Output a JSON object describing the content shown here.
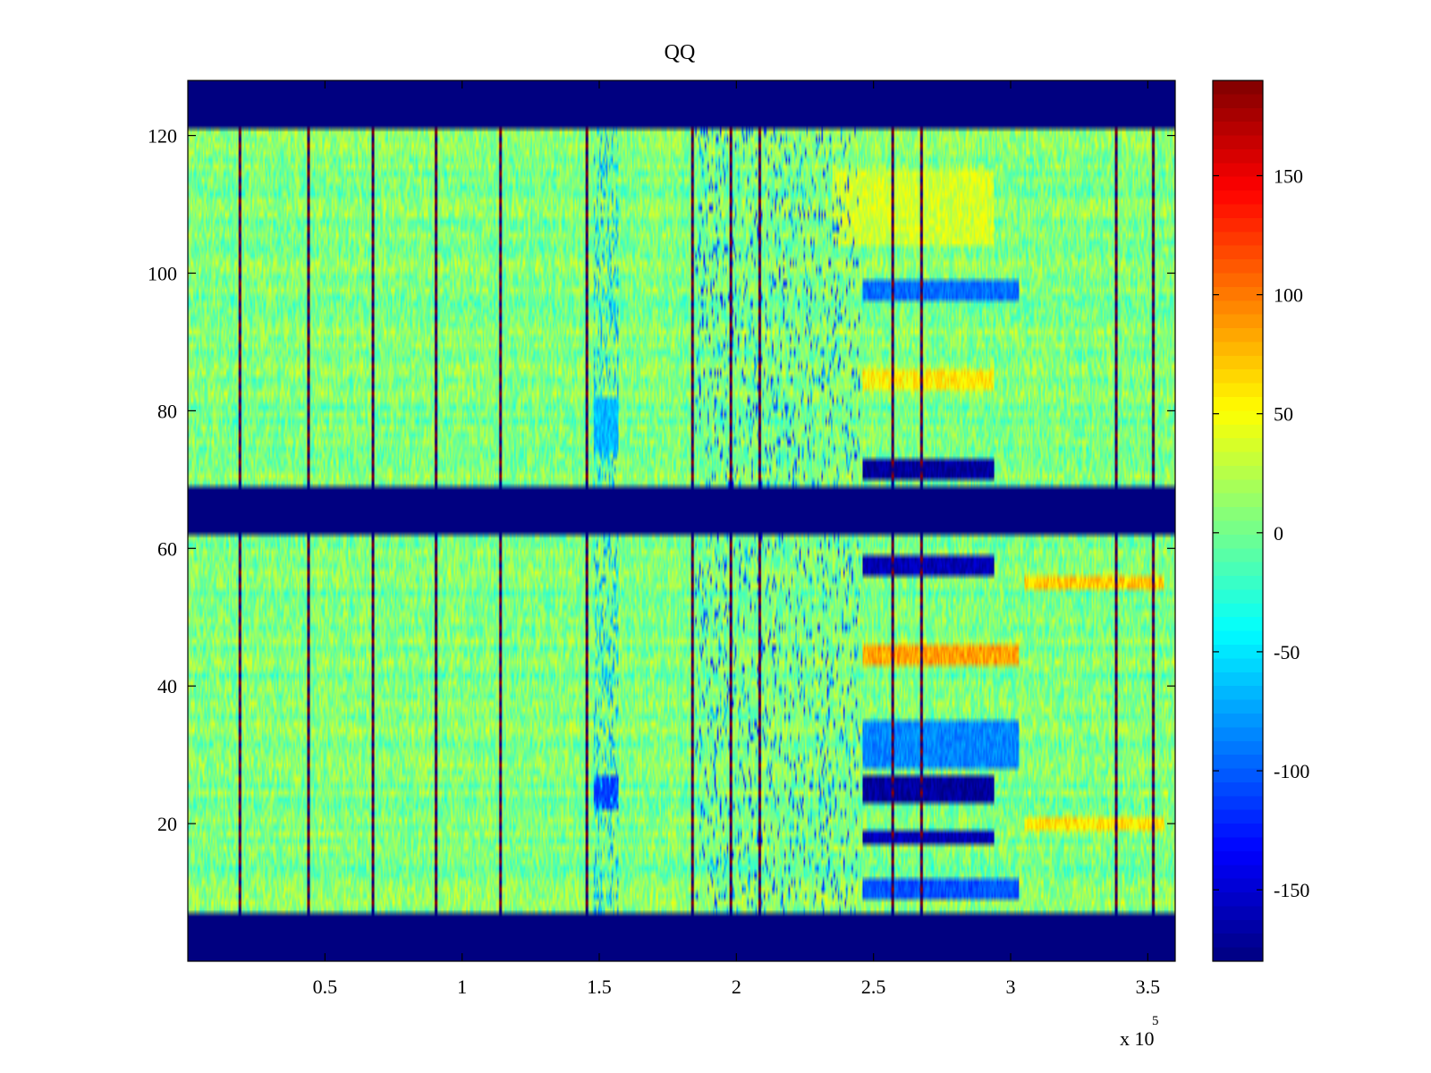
{
  "chart_data": {
    "type": "heatmap",
    "title": "QQ",
    "xlabel": "",
    "ylabel": "",
    "x_exponent_label": "x 10",
    "x_exponent": "5",
    "x_scale_factor": 100000,
    "xlim": [
      0,
      3.6
    ],
    "ylim": [
      0,
      128
    ],
    "x_ticks": [
      {
        "value": 0.5,
        "label": "0.5"
      },
      {
        "value": 1,
        "label": "1"
      },
      {
        "value": 1.5,
        "label": "1.5"
      },
      {
        "value": 2,
        "label": "2"
      },
      {
        "value": 2.5,
        "label": "2.5"
      },
      {
        "value": 3,
        "label": "3"
      },
      {
        "value": 3.5,
        "label": "3.5"
      }
    ],
    "y_ticks": [
      {
        "value": 20,
        "label": "20"
      },
      {
        "value": 40,
        "label": "40"
      },
      {
        "value": 60,
        "label": "60"
      },
      {
        "value": 80,
        "label": "80"
      },
      {
        "value": 100,
        "label": "100"
      },
      {
        "value": 120,
        "label": "120"
      }
    ],
    "colorbar": {
      "colormap": "jet",
      "range": [
        -180,
        190
      ],
      "ticks": [
        {
          "value": 150,
          "label": "150"
        },
        {
          "value": 100,
          "label": "100"
        },
        {
          "value": 50,
          "label": "50"
        },
        {
          "value": 0,
          "label": "0"
        },
        {
          "value": -50,
          "label": "-50"
        },
        {
          "value": -100,
          "label": "-100"
        },
        {
          "value": -150,
          "label": "-150"
        }
      ]
    },
    "background_value": 5,
    "masked_value": -180,
    "masked_row_bands": [
      [
        0,
        7
      ],
      [
        62,
        69
      ],
      [
        121,
        128
      ]
    ],
    "vertical_spike_x": [
      0.19,
      0.44,
      0.675,
      0.905,
      1.14,
      1.455,
      1.84,
      1.98,
      2.085,
      2.57,
      2.675,
      3.385,
      3.52
    ],
    "low_value_patches": [
      {
        "x": [
          2.46,
          2.94
        ],
        "y": [
          23,
          27
        ],
        "value": -170
      },
      {
        "x": [
          2.46,
          2.94
        ],
        "y": [
          17,
          19
        ],
        "value": -160
      },
      {
        "x": [
          2.46,
          2.94
        ],
        "y": [
          56,
          59
        ],
        "value": -160
      },
      {
        "x": [
          2.46,
          2.94
        ],
        "y": [
          70,
          73
        ],
        "value": -170
      },
      {
        "x": [
          2.46,
          3.03
        ],
        "y": [
          96,
          99
        ],
        "value": -95
      },
      {
        "x": [
          2.46,
          3.03
        ],
        "y": [
          28,
          35
        ],
        "value": -85
      },
      {
        "x": [
          2.46,
          3.03
        ],
        "y": [
          9,
          12
        ],
        "value": -105
      },
      {
        "x": [
          1.48,
          1.57
        ],
        "y": [
          22,
          27
        ],
        "value": -110
      },
      {
        "x": [
          1.48,
          1.57
        ],
        "y": [
          74,
          82
        ],
        "value": -65
      }
    ],
    "high_value_patches": [
      {
        "x": [
          2.46,
          3.03
        ],
        "y": [
          43,
          46
        ],
        "value": 85
      },
      {
        "x": [
          2.46,
          2.94
        ],
        "y": [
          83,
          86
        ],
        "value": 55
      },
      {
        "x": [
          3.05,
          3.56
        ],
        "y": [
          54,
          56
        ],
        "value": 70
      },
      {
        "x": [
          3.05,
          3.56
        ],
        "y": [
          19,
          21
        ],
        "value": 60
      },
      {
        "x": [
          2.35,
          2.94
        ],
        "y": [
          104,
          115
        ],
        "value": 35
      }
    ]
  }
}
